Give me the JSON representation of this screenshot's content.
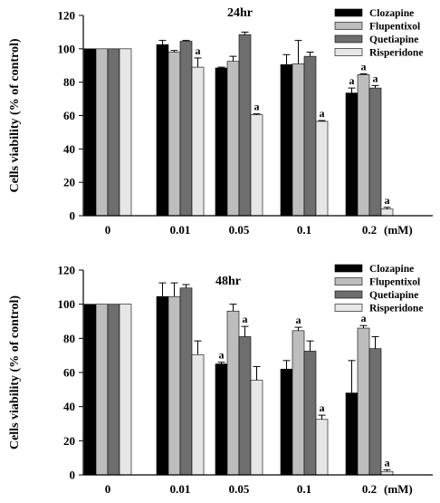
{
  "chart_data": [
    {
      "type": "bar",
      "title": "24hr",
      "ylabel": "Cells viability (% of control)",
      "xlabel": "",
      "x_unit_label": "(mM)",
      "categories": [
        "0",
        "0.01",
        "0.05",
        "0.1",
        "0.2"
      ],
      "ylim": [
        0,
        120
      ],
      "yticks": [
        0,
        20,
        40,
        60,
        80,
        100,
        120
      ],
      "legend_position": "top-right",
      "series": [
        {
          "name": "Clozapine",
          "color": "#000000",
          "values": [
            100,
            102.5,
            88.5,
            90.5,
            73.5
          ],
          "errors": [
            0,
            2.5,
            0.5,
            6,
            3
          ],
          "annotations": [
            "",
            "",
            "",
            "",
            "a"
          ]
        },
        {
          "name": "Flupentixol",
          "color": "#bdbdbd",
          "values": [
            100,
            98,
            92.5,
            91,
            84.5
          ],
          "errors": [
            0,
            1,
            3,
            14,
            0.5
          ],
          "annotations": [
            "",
            "",
            "",
            "",
            "a"
          ]
        },
        {
          "name": "Quetiapine",
          "color": "#6e6e6e",
          "values": [
            100,
            104.5,
            108.5,
            95.5,
            76.5
          ],
          "errors": [
            0,
            0.5,
            1.5,
            2.5,
            1.5
          ],
          "annotations": [
            "",
            "",
            "",
            "",
            "a"
          ]
        },
        {
          "name": "Risperidone",
          "color": "#e6e6e6",
          "values": [
            100,
            89,
            60.5,
            56.5,
            4
          ],
          "errors": [
            0,
            5.5,
            0.5,
            0.5,
            1
          ],
          "annotations": [
            "",
            "a",
            "a",
            "a",
            "a"
          ]
        }
      ]
    },
    {
      "type": "bar",
      "title": "48hr",
      "ylabel": "Cells viability (% of control)",
      "xlabel": "",
      "x_unit_label": "(mM)",
      "categories": [
        "0",
        "0.01",
        "0.05",
        "0.1",
        "0.2"
      ],
      "ylim": [
        0,
        120
      ],
      "yticks": [
        0,
        20,
        40,
        60,
        80,
        100,
        120
      ],
      "legend_position": "top-right",
      "series": [
        {
          "name": "Clozapine",
          "color": "#000000",
          "values": [
            100,
            104.5,
            65,
            62,
            48
          ],
          "errors": [
            0,
            8,
            1,
            5,
            19
          ],
          "annotations": [
            "",
            "",
            "a",
            "",
            ""
          ]
        },
        {
          "name": "Flupentixol",
          "color": "#bdbdbd",
          "values": [
            100,
            104.5,
            96,
            84.5,
            86
          ],
          "errors": [
            0,
            8,
            4,
            2,
            1.5
          ],
          "annotations": [
            "",
            "",
            "",
            "a",
            "a"
          ]
        },
        {
          "name": "Quetiapine",
          "color": "#6e6e6e",
          "values": [
            100,
            109.5,
            81,
            72.5,
            74
          ],
          "errors": [
            0,
            2,
            6,
            6,
            7
          ],
          "annotations": [
            "",
            "",
            "a",
            "",
            ""
          ]
        },
        {
          "name": "Risperidone",
          "color": "#e6e6e6",
          "values": [
            100,
            70.5,
            55.5,
            32.5,
            2
          ],
          "errors": [
            0,
            8,
            8,
            2.5,
            1
          ],
          "annotations": [
            "",
            "",
            "",
            "a",
            "a"
          ]
        }
      ]
    }
  ]
}
